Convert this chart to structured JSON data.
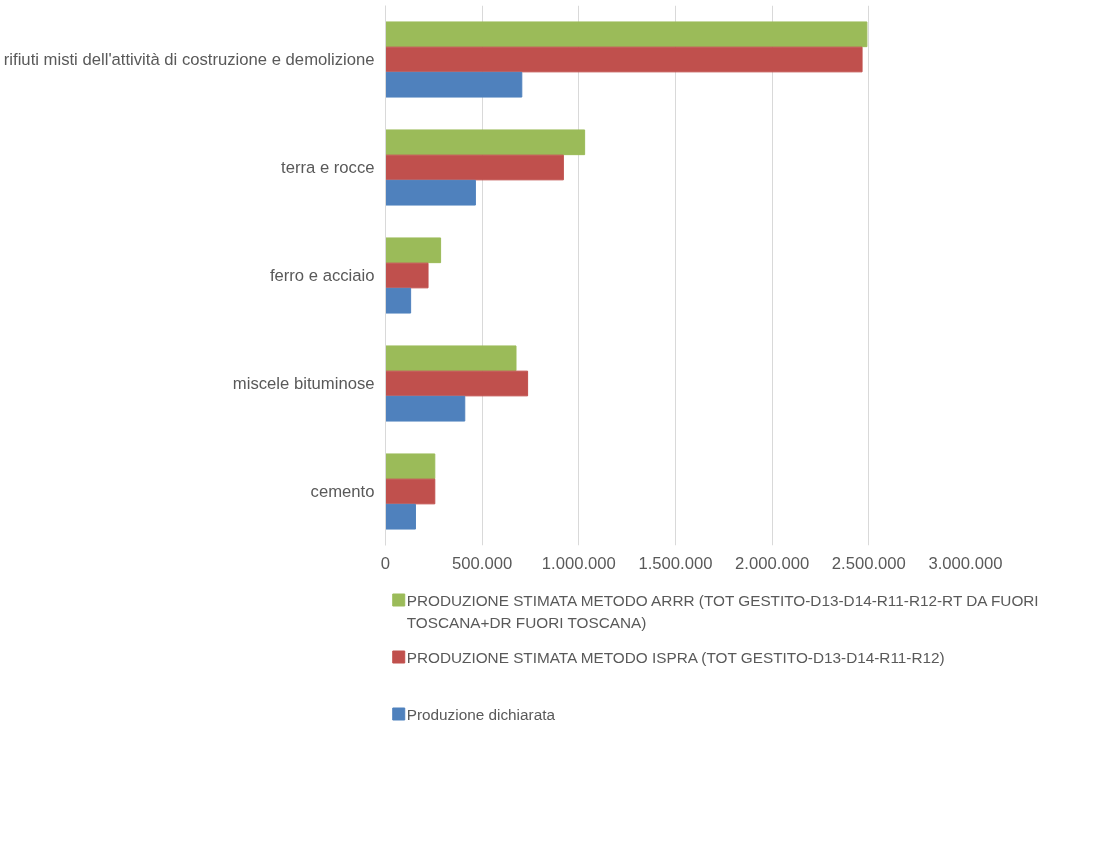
{
  "chart_data": {
    "type": "bar",
    "orientation": "horizontal",
    "categories": [
      "rifiuti misti dell'attività di costruzione e demolizione",
      "terra e rocce",
      "ferro e acciaio",
      "miscele bituminose",
      "cemento"
    ],
    "series": [
      {
        "name": "PRODUZIONE STIMATA METODO ARRR (TOT GESTITO-D13-D14-R11-R12-RT DA FUORI TOSCANA+DR FUORI TOSCANA)",
        "color": "#9bbb59",
        "values": [
          2490000,
          1030000,
          285000,
          675000,
          255000
        ]
      },
      {
        "name": "PRODUZIONE STIMATA METODO ISPRA (TOT GESTITO-D13-D14-R11-R12)",
        "color": "#c0504d",
        "values": [
          2465000,
          920000,
          220000,
          735000,
          255000
        ]
      },
      {
        "name": "Produzione dichiarata",
        "color": "#4f81bd",
        "values": [
          705000,
          465000,
          130000,
          410000,
          155000
        ]
      }
    ],
    "xlim": [
      0,
      3000000
    ],
    "xticks": [
      0,
      {
        "value": 500000,
        "label": "500.000"
      },
      {
        "value": 1000000,
        "label": "1.000.000"
      },
      {
        "value": 1500000,
        "label": "1.500.000"
      },
      {
        "value": 2000000,
        "label": "2.000.000"
      },
      {
        "value": 2500000,
        "label": "2.500.000"
      },
      {
        "value": 3000000,
        "label": "3.000.000"
      }
    ],
    "grid": "x",
    "legend": "bottom"
  }
}
